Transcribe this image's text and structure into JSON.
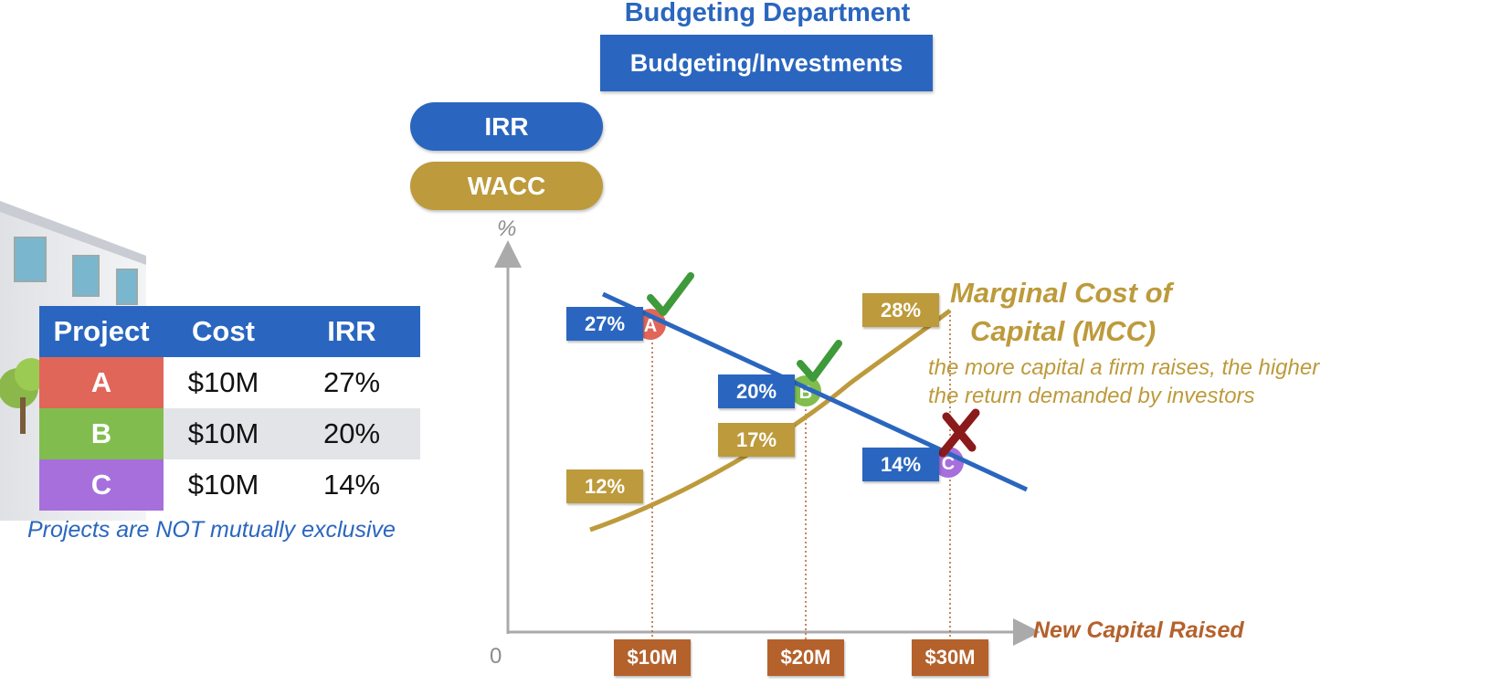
{
  "header": {
    "title": "Budgeting Department",
    "section": "Budgeting/Investments"
  },
  "legend": {
    "irr": "IRR",
    "wacc": "WACC"
  },
  "table": {
    "headers": [
      "Project",
      "Cost",
      "IRR"
    ],
    "rows": [
      {
        "project": "A",
        "cost": "$10M",
        "irr": "27%",
        "color": "#e0665a"
      },
      {
        "project": "B",
        "cost": "$10M",
        "irr": "20%",
        "color": "#80bd4e"
      },
      {
        "project": "C",
        "cost": "$10M",
        "irr": "14%",
        "color": "#a66fdc"
      }
    ],
    "note": "Projects are NOT mutually exclusive"
  },
  "chart": {
    "y_axis_label": "%",
    "origin_label": "0",
    "x_axis_label": "New Capital Raised",
    "x_ticks": [
      "$10M",
      "$20M",
      "$30M"
    ],
    "irr_labels": [
      "27%",
      "20%",
      "14%"
    ],
    "wacc_labels": [
      "12%",
      "17%",
      "28%"
    ],
    "mcc_title_line1": "Marginal Cost of",
    "mcc_title_line2": "Capital (MCC)",
    "mcc_desc_line1": "the more capital a firm raises, the higher",
    "mcc_desc_line2": "the return demanded by investors",
    "point_labels": [
      "A",
      "B",
      "C"
    ],
    "colors": {
      "irr": "#2a66bf",
      "wacc": "#bd9a3b",
      "accept": "#3e9a3a",
      "reject": "#8b1a1a",
      "x_tick": "#b4612c"
    }
  },
  "chart_data": {
    "type": "line",
    "x": [
      10,
      20,
      30
    ],
    "series": [
      {
        "name": "IRR",
        "values": [
          27,
          20,
          14
        ]
      },
      {
        "name": "WACC",
        "values": [
          12,
          17,
          28
        ]
      }
    ],
    "xlabel": "New Capital Raised",
    "ylabel": "%",
    "decisions": {
      "A": "accept",
      "B": "accept",
      "C": "reject"
    }
  }
}
